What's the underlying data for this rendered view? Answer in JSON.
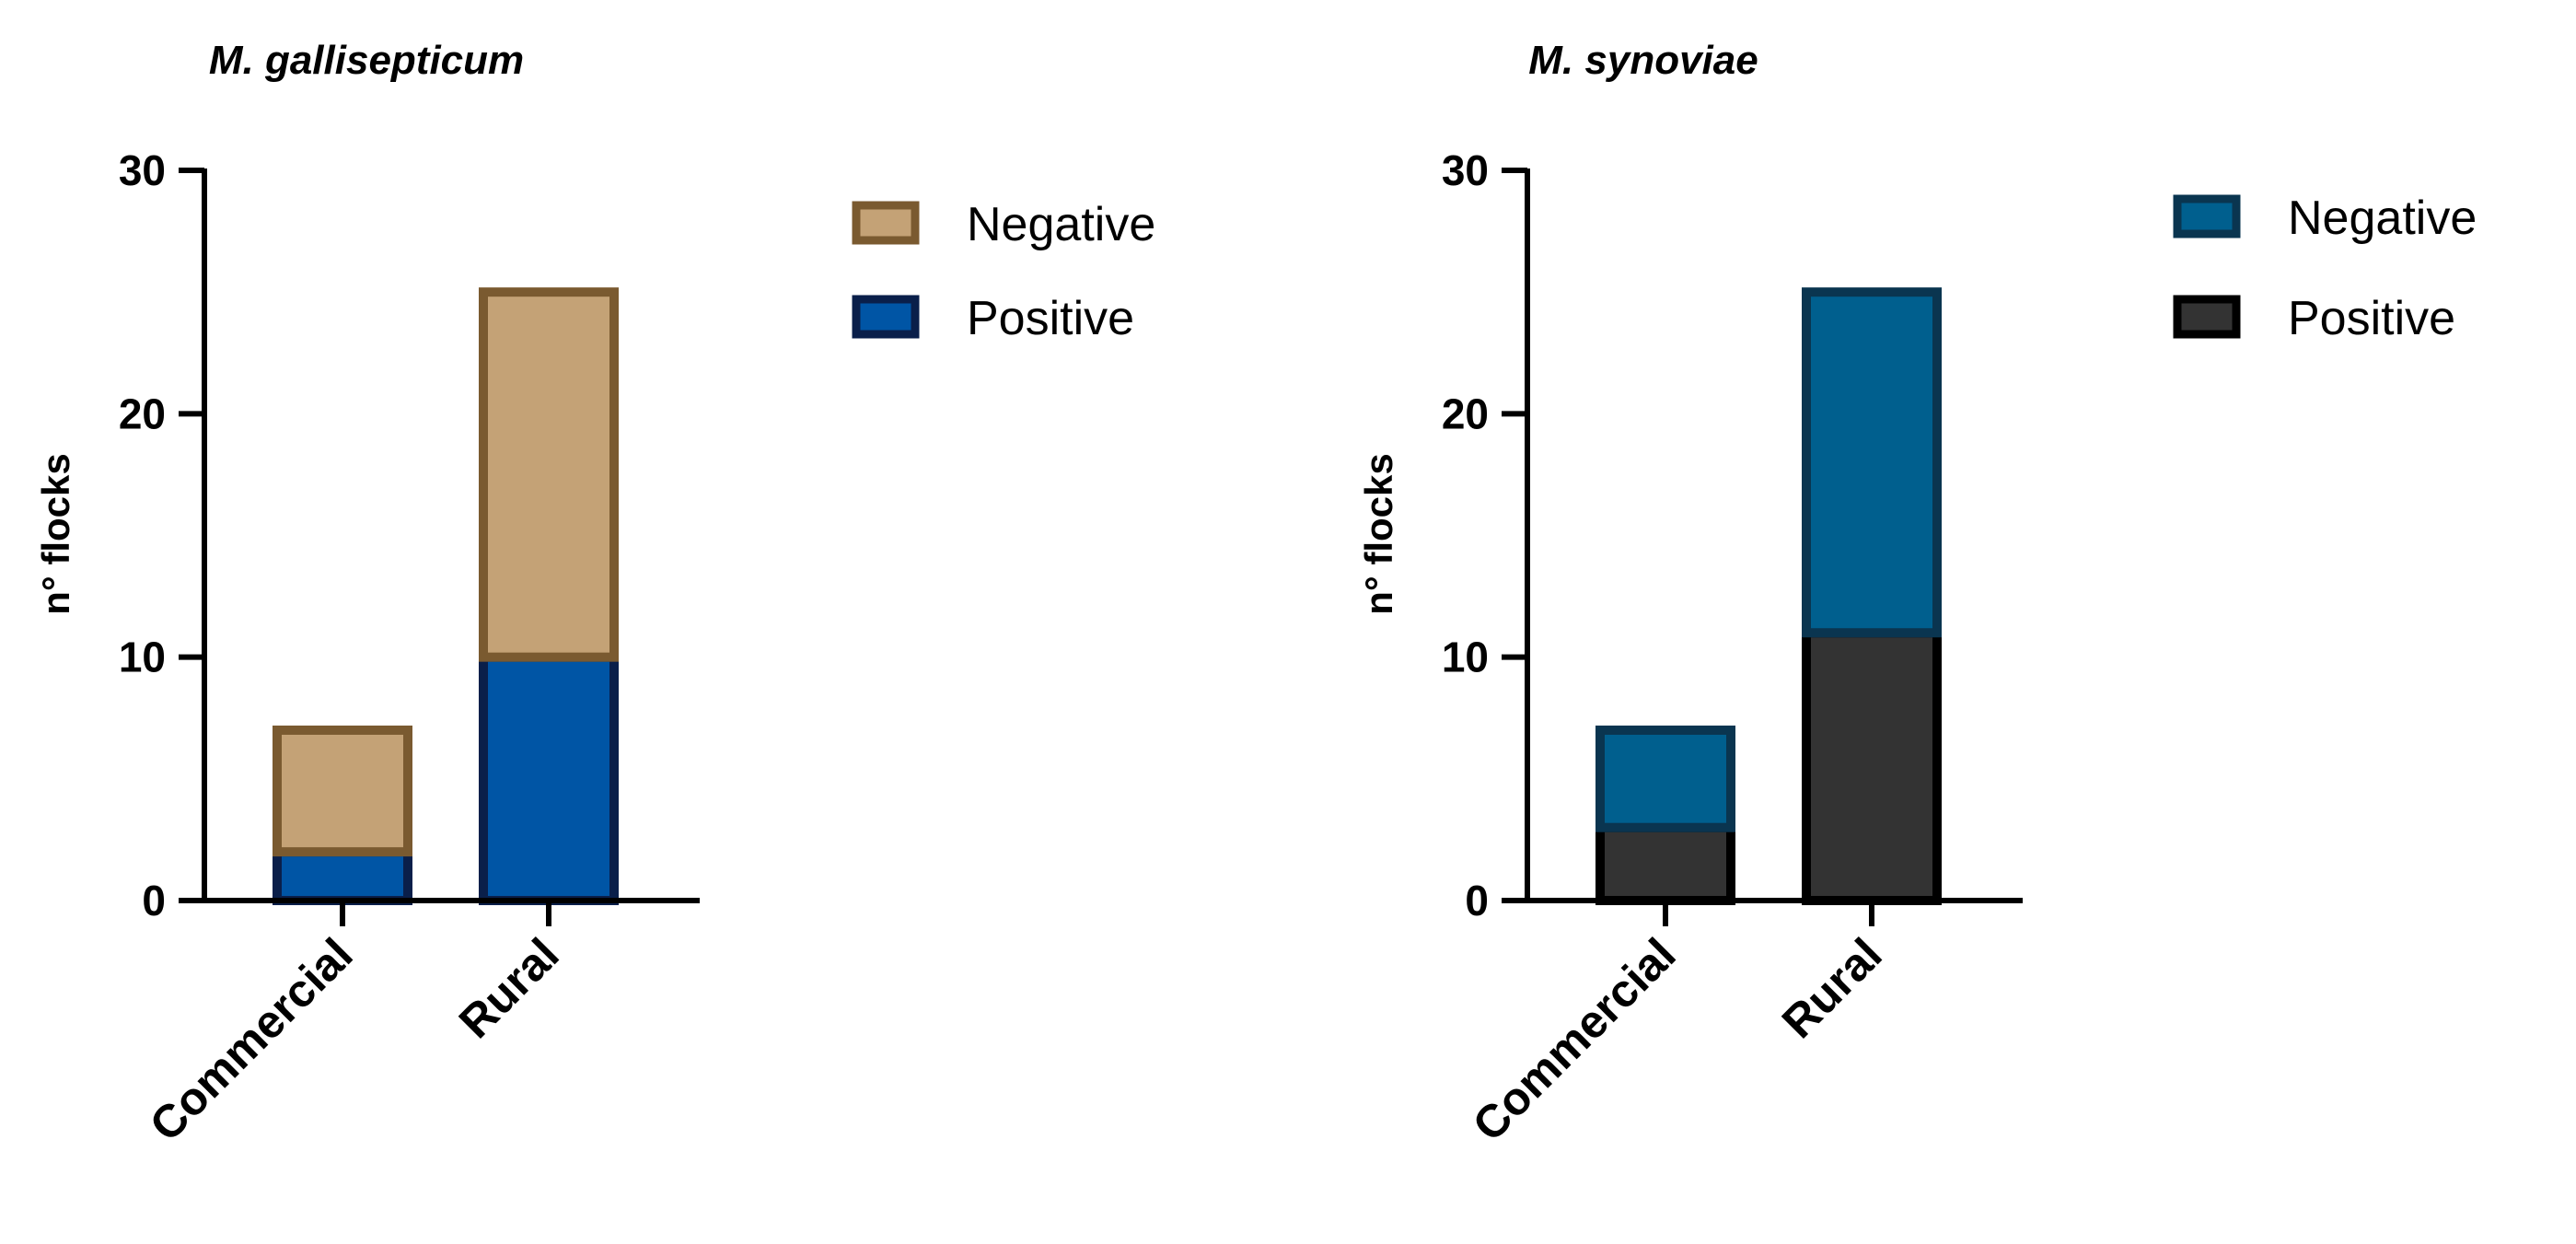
{
  "chart_data": [
    {
      "type": "bar",
      "stacked": true,
      "title": "M. gallisepticum",
      "xlabel": "",
      "ylabel": "n° flocks",
      "ylim": [
        0,
        30
      ],
      "yticks": [
        0,
        10,
        20,
        30
      ],
      "categories": [
        "Commercial",
        "Rural"
      ],
      "series": [
        {
          "name": "Positive",
          "values": [
            2,
            10
          ],
          "color": "#0055a5",
          "edge": "#0a1f4a"
        },
        {
          "name": "Negative",
          "values": [
            5,
            15
          ],
          "color": "#c4a276",
          "edge": "#7a5a30"
        }
      ],
      "legend_order": [
        "Negative",
        "Positive"
      ],
      "legend": "right"
    },
    {
      "type": "bar",
      "stacked": true,
      "title": "M. synoviae",
      "xlabel": "",
      "ylabel": "n° flocks",
      "ylim": [
        0,
        30
      ],
      "yticks": [
        0,
        10,
        20,
        30
      ],
      "categories": [
        "Commercial",
        "Rural"
      ],
      "series": [
        {
          "name": "Positive",
          "values": [
            3,
            11
          ],
          "color": "#333333",
          "edge": "#000000"
        },
        {
          "name": "Negative",
          "values": [
            4,
            14
          ],
          "color": "#005f8e",
          "edge": "#0a3550"
        }
      ],
      "legend_order": [
        "Negative",
        "Positive"
      ],
      "legend": "right"
    }
  ]
}
